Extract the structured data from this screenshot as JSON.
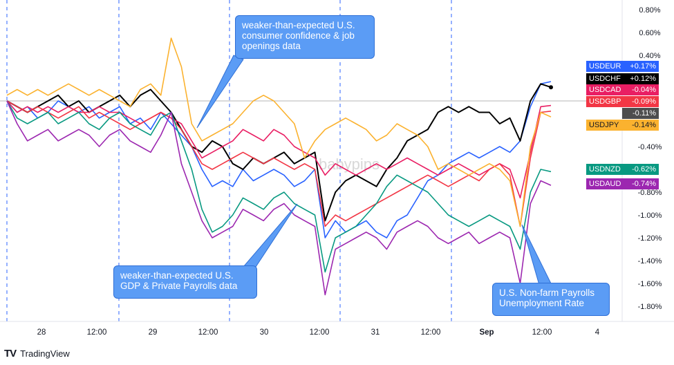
{
  "chart_data": {
    "type": "line",
    "watermark": "babypips",
    "x_labels": [
      "28",
      "12:00",
      "29",
      "12:00",
      "30",
      "12:00",
      "31",
      "12:00",
      "Sep",
      "12:00",
      "4"
    ],
    "y_ticks": [
      "0.80%",
      "0.60%",
      "0.40%",
      "-0.40%",
      "-0.80%",
      "-1.00%",
      "-1.20%",
      "-1.40%",
      "-1.60%",
      "-1.80%"
    ],
    "y_range": [
      -1.9,
      0.85
    ],
    "grid": false,
    "series": [
      {
        "name": "USDEUR",
        "color": "#2962ff",
        "last": "+0.17%",
        "values": [
          0,
          -0.1,
          -0.05,
          -0.15,
          -0.1,
          0,
          -0.05,
          -0.1,
          -0.05,
          -0.15,
          -0.1,
          -0.05,
          -0.2,
          -0.15,
          -0.25,
          -0.1,
          -0.2,
          -0.3,
          -0.4,
          -0.6,
          -0.75,
          -0.7,
          -0.75,
          -0.6,
          -0.7,
          -0.65,
          -0.6,
          -0.65,
          -0.75,
          -0.7,
          -0.6,
          -1.2,
          -1.05,
          -1.15,
          -1.1,
          -1.05,
          -1.15,
          -1.2,
          -1.05,
          -1.0,
          -0.85,
          -0.7,
          -0.65,
          -0.55,
          -0.5,
          -0.45,
          -0.5,
          -0.45,
          -0.4,
          -0.45,
          -0.35,
          -0.05,
          0.15,
          0.17
        ]
      },
      {
        "name": "USDCHF",
        "color": "#000000",
        "last": "+0.12%",
        "values": [
          0,
          -0.05,
          -0.1,
          -0.05,
          0,
          0.05,
          -0.05,
          0,
          -0.1,
          -0.05,
          0,
          0.05,
          -0.05,
          0.05,
          0.1,
          0,
          -0.1,
          -0.25,
          -0.4,
          -0.45,
          -0.35,
          -0.4,
          -0.55,
          -0.6,
          -0.5,
          -0.55,
          -0.5,
          -0.45,
          -0.55,
          -0.5,
          -0.45,
          -1.05,
          -0.8,
          -0.7,
          -0.65,
          -0.7,
          -0.75,
          -0.6,
          -0.5,
          -0.35,
          -0.3,
          -0.25,
          -0.1,
          -0.05,
          -0.1,
          -0.05,
          -0.1,
          -0.1,
          -0.2,
          -0.15,
          -0.35,
          0.0,
          0.15,
          0.12
        ]
      },
      {
        "name": "USDCAD",
        "color": "#e91e63",
        "last": "-0.04%",
        "values": [
          0,
          -0.1,
          -0.05,
          -0.1,
          -0.05,
          -0.1,
          -0.05,
          -0.1,
          -0.1,
          -0.05,
          -0.1,
          -0.1,
          -0.15,
          -0.2,
          -0.15,
          -0.1,
          -0.15,
          -0.2,
          -0.35,
          -0.5,
          -0.45,
          -0.4,
          -0.35,
          -0.25,
          -0.3,
          -0.35,
          -0.25,
          -0.3,
          -0.4,
          -0.45,
          -0.5,
          -0.65,
          -0.55,
          -0.6,
          -0.65,
          -0.6,
          -0.55,
          -0.6,
          -0.55,
          -0.5,
          -0.55,
          -0.6,
          -0.65,
          -0.6,
          -0.55,
          -0.6,
          -0.65,
          -0.6,
          -0.55,
          -0.6,
          -0.85,
          -0.45,
          -0.05,
          -0.04
        ]
      },
      {
        "name": "USDGBP",
        "color": "#f23645",
        "last": "-0.09%",
        "values": [
          0,
          -0.05,
          -0.1,
          -0.05,
          -0.1,
          -0.15,
          -0.1,
          -0.05,
          -0.15,
          -0.1,
          -0.15,
          -0.2,
          -0.25,
          -0.2,
          -0.15,
          -0.1,
          -0.15,
          -0.25,
          -0.4,
          -0.55,
          -0.6,
          -0.55,
          -0.5,
          -0.45,
          -0.5,
          -0.55,
          -0.5,
          -0.55,
          -0.6,
          -0.55,
          -0.6,
          -1.1,
          -1.0,
          -1.05,
          -1.0,
          -0.95,
          -0.9,
          -0.85,
          -0.8,
          -0.75,
          -0.7,
          -0.65,
          -0.7,
          -0.75,
          -0.7,
          -0.65,
          -0.7,
          -0.6,
          -0.55,
          -0.65,
          -1.1,
          -0.5,
          -0.1,
          -0.09
        ]
      },
      {
        "name": "",
        "color": "#4d4d4d",
        "last": "-0.11%",
        "values": []
      },
      {
        "name": "USDJPY",
        "color": "#fbb22f",
        "last": "-0.14%",
        "values": [
          0.05,
          0.1,
          0.05,
          0.1,
          0.05,
          0.1,
          0.15,
          0.1,
          0.05,
          0.1,
          0.05,
          0.0,
          -0.05,
          0.1,
          0.15,
          0.05,
          0.55,
          0.3,
          -0.2,
          -0.35,
          -0.3,
          -0.25,
          -0.2,
          -0.1,
          0.0,
          0.05,
          0.0,
          -0.1,
          -0.2,
          -0.5,
          -0.35,
          -0.25,
          -0.2,
          -0.15,
          -0.2,
          -0.25,
          -0.35,
          -0.3,
          -0.2,
          -0.25,
          -0.3,
          -0.4,
          -0.6,
          -0.55,
          -0.6,
          -0.65,
          -0.6,
          -0.55,
          -0.6,
          -0.7,
          -1.1,
          -0.4,
          -0.1,
          -0.14
        ]
      },
      {
        "name": "USDNZD",
        "color": "#089981",
        "last": "-0.62%",
        "values": [
          0,
          -0.15,
          -0.2,
          -0.15,
          -0.1,
          -0.2,
          -0.15,
          -0.1,
          -0.2,
          -0.25,
          -0.15,
          -0.1,
          -0.2,
          -0.25,
          -0.3,
          -0.15,
          -0.1,
          -0.35,
          -0.6,
          -0.95,
          -1.15,
          -1.1,
          -1.0,
          -0.85,
          -0.9,
          -0.95,
          -0.85,
          -0.8,
          -0.9,
          -0.95,
          -1.0,
          -1.5,
          -1.2,
          -1.15,
          -1.1,
          -1.0,
          -0.9,
          -0.75,
          -0.65,
          -0.7,
          -0.75,
          -0.8,
          -0.9,
          -1.0,
          -1.05,
          -1.1,
          -1.05,
          -1.0,
          -1.05,
          -1.1,
          -1.3,
          -0.8,
          -0.6,
          -0.62
        ]
      },
      {
        "name": "USDAUD",
        "color": "#9c27b0",
        "last": "-0.74%",
        "values": [
          0,
          -0.2,
          -0.35,
          -0.3,
          -0.25,
          -0.35,
          -0.3,
          -0.25,
          -0.3,
          -0.4,
          -0.3,
          -0.25,
          -0.35,
          -0.4,
          -0.45,
          -0.3,
          -0.1,
          -0.55,
          -0.8,
          -1.05,
          -1.2,
          -1.15,
          -1.1,
          -0.95,
          -1.0,
          -1.05,
          -0.95,
          -0.9,
          -1.0,
          -1.05,
          -1.1,
          -1.7,
          -1.3,
          -1.25,
          -1.2,
          -1.15,
          -1.2,
          -1.3,
          -1.15,
          -1.1,
          -1.05,
          -1.1,
          -1.2,
          -1.25,
          -1.2,
          -1.15,
          -1.25,
          -1.2,
          -1.15,
          -1.2,
          -1.6,
          -0.9,
          -0.7,
          -0.74
        ]
      }
    ],
    "annotations": [
      {
        "text": "weaker-than-expected U.S. consumer confidence &  job openings data"
      },
      {
        "text": "weaker-than-expected U.S. GDP & Private Payrolls data"
      },
      {
        "text": "U.S. Non-farm Payrolls Unemployment Rate"
      }
    ]
  },
  "footer": {
    "brand": "TradingView",
    "logo": "TV"
  }
}
